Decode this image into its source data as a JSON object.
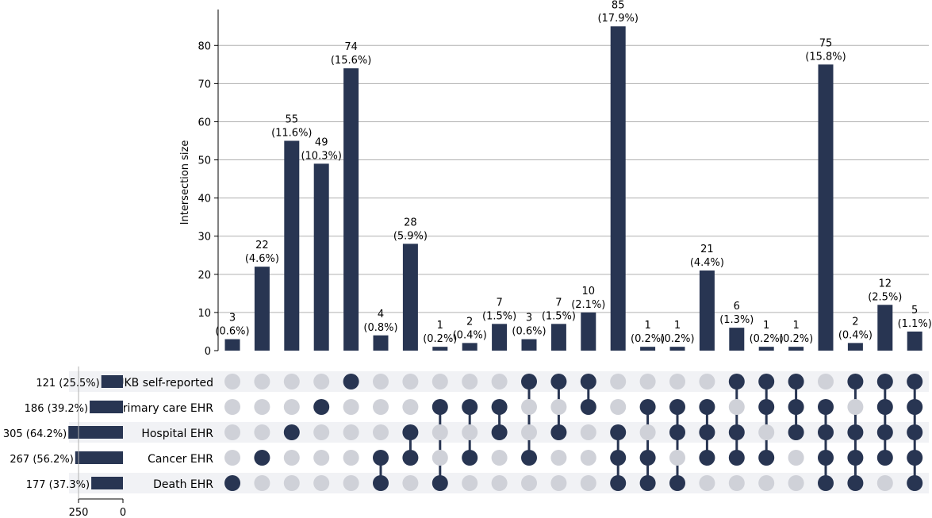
{
  "chart_data": {
    "type": "upset",
    "ylabel": "Intersection size",
    "yticks": [
      0,
      10,
      20,
      30,
      40,
      50,
      60,
      70,
      80
    ],
    "ylim": [
      0,
      89
    ],
    "set_size_xticks": [
      "250",
      "0"
    ],
    "bar_color": "#283552",
    "inactive_dot_color": "#cfd1d8",
    "stripe_color": "#f1f2f5",
    "sets": [
      {
        "name": "UKB self-reported",
        "size": 121,
        "label": "121 (25.5%)"
      },
      {
        "name": "Primary care EHR",
        "size": 186,
        "label": "186 (39.2%)"
      },
      {
        "name": "Hospital EHR",
        "size": 305,
        "label": "305 (64.2%)"
      },
      {
        "name": "Cancer EHR",
        "size": 267,
        "label": "267 (56.2%)"
      },
      {
        "name": "Death EHR",
        "size": 177,
        "label": "177 (37.3%)"
      }
    ],
    "intersections": [
      {
        "value": 3,
        "count": "3",
        "pct": "(0.6%)",
        "members": [
          4
        ]
      },
      {
        "value": 22,
        "count": "22",
        "pct": "(4.6%)",
        "members": [
          3
        ]
      },
      {
        "value": 55,
        "count": "55",
        "pct": "(11.6%)",
        "members": [
          2
        ]
      },
      {
        "value": 49,
        "count": "49",
        "pct": "(10.3%)",
        "members": [
          1
        ]
      },
      {
        "value": 74,
        "count": "74",
        "pct": "(15.6%)",
        "members": [
          0
        ]
      },
      {
        "value": 4,
        "count": "4",
        "pct": "(0.8%)",
        "members": [
          3,
          4
        ]
      },
      {
        "value": 28,
        "count": "28",
        "pct": "(5.9%)",
        "members": [
          2,
          3
        ]
      },
      {
        "value": 1,
        "count": "1",
        "pct": "(0.2%)",
        "members": [
          1,
          4
        ]
      },
      {
        "value": 2,
        "count": "2",
        "pct": "(0.4%)",
        "members": [
          1,
          3
        ]
      },
      {
        "value": 7,
        "count": "7",
        "pct": "(1.5%)",
        "members": [
          1,
          2
        ]
      },
      {
        "value": 3,
        "count": "3",
        "pct": "(0.6%)",
        "members": [
          0,
          3
        ]
      },
      {
        "value": 7,
        "count": "7",
        "pct": "(1.5%)",
        "members": [
          0,
          2
        ]
      },
      {
        "value": 10,
        "count": "10",
        "pct": "(2.1%)",
        "members": [
          0,
          1
        ]
      },
      {
        "value": 85,
        "count": "85",
        "pct": "(17.9%)",
        "members": [
          2,
          3,
          4
        ]
      },
      {
        "value": 1,
        "count": "1",
        "pct": "(0.2%)",
        "members": [
          1,
          3,
          4
        ]
      },
      {
        "value": 1,
        "count": "1",
        "pct": "(0.2%)",
        "members": [
          1,
          2,
          4
        ]
      },
      {
        "value": 21,
        "count": "21",
        "pct": "(4.4%)",
        "members": [
          1,
          2,
          3
        ]
      },
      {
        "value": 6,
        "count": "6",
        "pct": "(1.3%)",
        "members": [
          0,
          2,
          3
        ]
      },
      {
        "value": 1,
        "count": "1",
        "pct": "(0.2%)",
        "members": [
          0,
          1,
          3
        ]
      },
      {
        "value": 1,
        "count": "1",
        "pct": "(0.2%)",
        "members": [
          0,
          1,
          2
        ]
      },
      {
        "value": 75,
        "count": "75",
        "pct": "(15.8%)",
        "members": [
          1,
          2,
          3,
          4
        ]
      },
      {
        "value": 2,
        "count": "2",
        "pct": "(0.4%)",
        "members": [
          0,
          2,
          3,
          4
        ]
      },
      {
        "value": 12,
        "count": "12",
        "pct": "(2.5%)",
        "members": [
          0,
          1,
          2,
          3
        ]
      },
      {
        "value": 5,
        "count": "5",
        "pct": "(1.1%)",
        "members": [
          0,
          1,
          2,
          3,
          4
        ]
      }
    ]
  }
}
